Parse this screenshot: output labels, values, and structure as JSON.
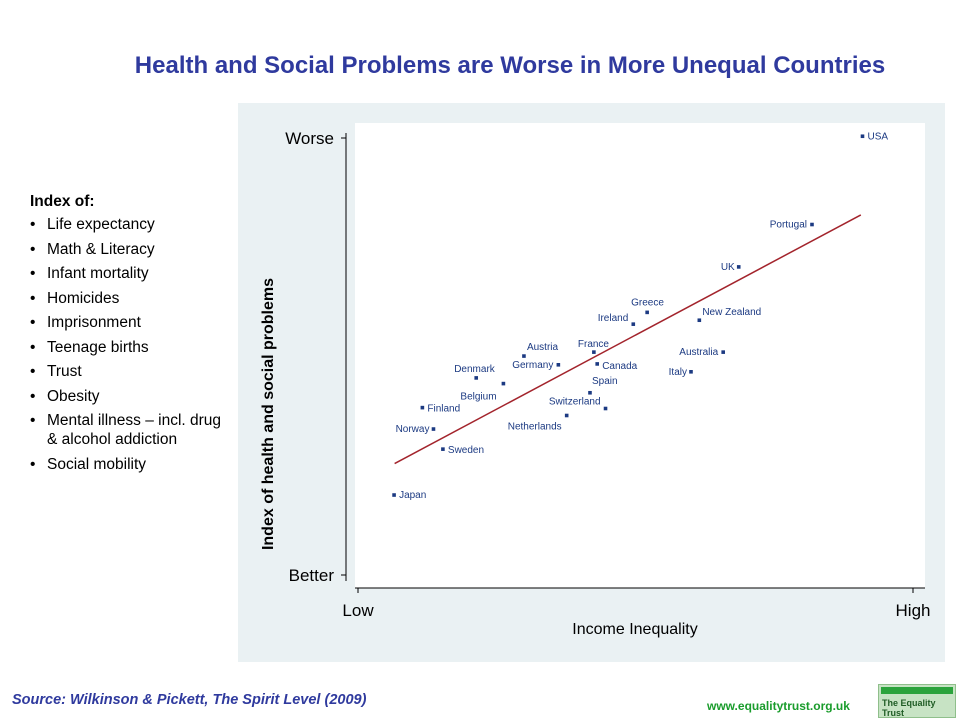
{
  "title": "Health and Social Problems are Worse in More Unequal Countries",
  "index_box": {
    "heading": "Index of:",
    "items": [
      "Life expectancy",
      "Math & Literacy",
      "Infant mortality",
      "Homicides",
      "Imprisonment",
      "Teenage births",
      "Trust",
      "Obesity",
      "Mental illness – incl. drug & alcohol addiction",
      "Social mobility"
    ]
  },
  "chart_data": {
    "type": "scatter",
    "title": "",
    "xlabel": "Income Inequality",
    "ylabel": "Index of health and social problems",
    "xlim": [
      0,
      100
    ],
    "ylim": [
      0,
      100
    ],
    "x_tick_labels": [
      {
        "value": 0,
        "label": "Low"
      },
      {
        "value": 100,
        "label": "High"
      }
    ],
    "y_tick_labels": [
      {
        "value": 0,
        "label": "Better"
      },
      {
        "value": 100,
        "label": "Worse"
      }
    ],
    "grid": false,
    "trendline": {
      "x": [
        6.6,
        90.6
      ],
      "y": [
        25.5,
        82.4
      ],
      "color": "#a3242c"
    },
    "point_color": "#1c3a82",
    "points": [
      {
        "label": "USA",
        "x": 90.9,
        "y": 100.4
      },
      {
        "label": "Portugal",
        "x": 81.8,
        "y": 80.2
      },
      {
        "label": "UK",
        "x": 68.6,
        "y": 70.5
      },
      {
        "label": "Greece",
        "x": 52.1,
        "y": 60.1
      },
      {
        "label": "New Zealand",
        "x": 61.5,
        "y": 58.3
      },
      {
        "label": "Ireland",
        "x": 49.6,
        "y": 57.4
      },
      {
        "label": "Austria",
        "x": 29.9,
        "y": 50.1
      },
      {
        "label": "France",
        "x": 42.5,
        "y": 51.0
      },
      {
        "label": "Australia",
        "x": 65.8,
        "y": 51.0
      },
      {
        "label": "Germany",
        "x": 36.1,
        "y": 48.1
      },
      {
        "label": "Canada",
        "x": 43.1,
        "y": 48.3
      },
      {
        "label": "Italy",
        "x": 60.0,
        "y": 46.5
      },
      {
        "label": "Denmark",
        "x": 21.3,
        "y": 45.1
      },
      {
        "label": "Belgium",
        "x": 26.2,
        "y": 43.8
      },
      {
        "label": "Spain",
        "x": 41.8,
        "y": 41.7
      },
      {
        "label": "Finland",
        "x": 11.6,
        "y": 38.3
      },
      {
        "label": "Switzerland",
        "x": 44.6,
        "y": 38.1
      },
      {
        "label": "Netherlands",
        "x": 37.6,
        "y": 36.5
      },
      {
        "label": "Norway",
        "x": 13.6,
        "y": 33.4
      },
      {
        "label": "Sweden",
        "x": 15.3,
        "y": 28.8
      },
      {
        "label": "Japan",
        "x": 6.5,
        "y": 18.3
      }
    ]
  },
  "footer": {
    "source": "Source: Wilkinson & Pickett, The Spirit Level (2009)",
    "website": "www.equalitytrust.org.uk",
    "logo_text": "The Equality Trust"
  }
}
